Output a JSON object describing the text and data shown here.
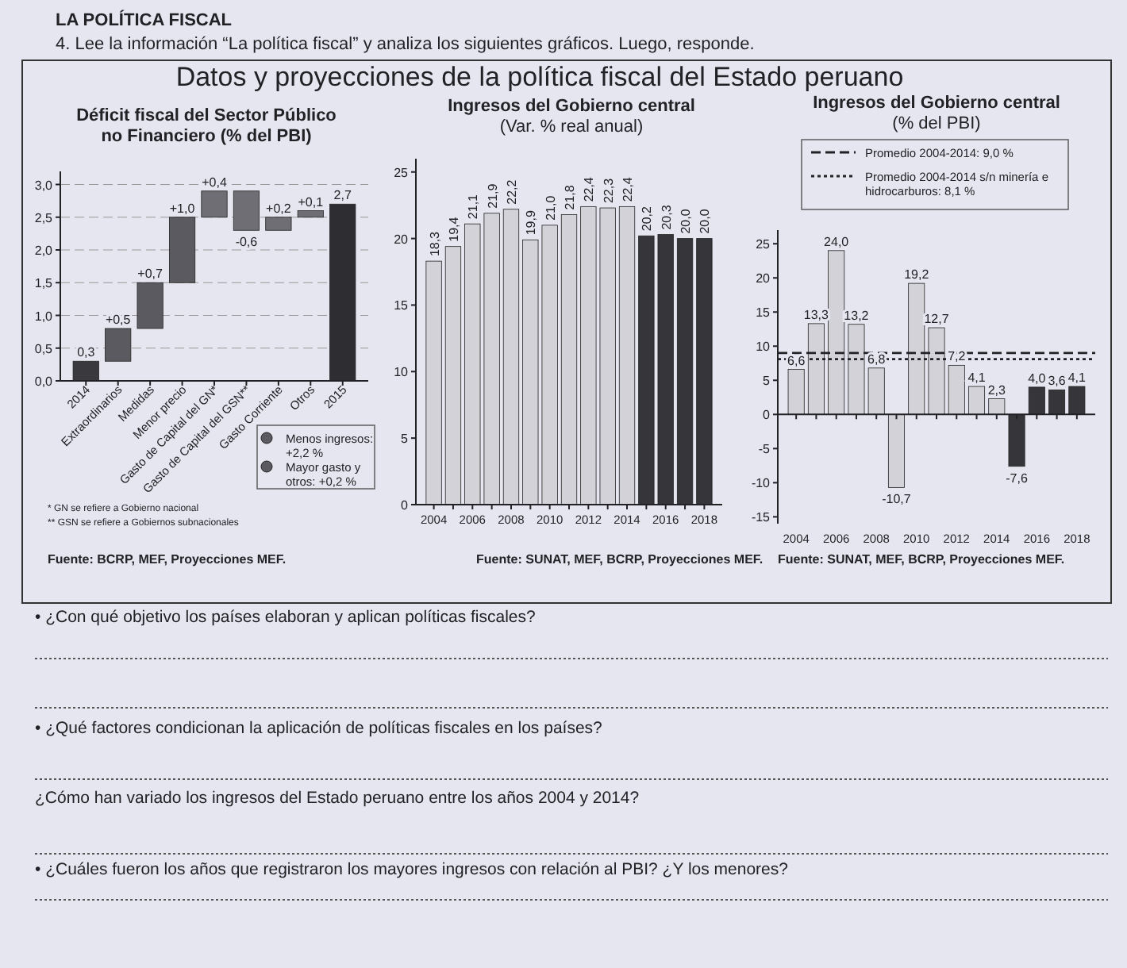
{
  "chart_data": [
    {
      "type": "other",
      "title": "LA POLÍTICA FISCAL",
      "subtitle": "4. Lee la información “La política fiscal” y analiza los siguientes gráficos. Luego, responde.",
      "annotations": [
        "Datos y proyecciones de la política fiscal del Estado peruano"
      ]
    },
    {
      "type": "bar",
      "title": "Déficit fiscal del Sector Público no Financiero (% del PBI)",
      "categories": [
        "2014",
        "Extraordinarios",
        "Medidas",
        "Menor precio",
        "Gasto de Capital del GN*",
        "Gasto de Capital del GSN**",
        "Gasto Corriente",
        "Otros",
        "2015"
      ],
      "values": [
        0.3,
        0.5,
        0.7,
        1.0,
        0.4,
        -0.6,
        0.2,
        0.1,
        2.7
      ],
      "base": [
        0,
        0.3,
        0.8,
        1.5,
        2.5,
        2.9,
        2.3,
        2.5,
        0
      ],
      "colors": [
        "#3a3a3e",
        "#5a5a60",
        "#5a5a60",
        "#5a5a60",
        "#6e6e74",
        "#6e6e74",
        "#6e6e74",
        "#6e6e74",
        "#2e2e32"
      ],
      "value_labels": [
        "0,3",
        "+0,5",
        "+0,7",
        "+1,0",
        "+0,4",
        "-0,6",
        "+0,2",
        "+0,1",
        "2,7"
      ],
      "ylim": [
        0,
        3.2
      ],
      "yticks": [
        {
          "value": 0,
          "label": "0,0"
        },
        {
          "value": 0.5,
          "label": "0,5"
        },
        {
          "value": 1,
          "label": "1,0"
        },
        {
          "value": 1.5,
          "label": "1,5"
        },
        {
          "value": 2,
          "label": "2,0"
        },
        {
          "value": 2.5,
          "label": "2,5"
        },
        {
          "value": 3,
          "label": "3,0"
        }
      ],
      "grid": "y",
      "line_style": "dashed",
      "annotations": [
        "Menos ingresos: +2,2 %",
        "Mayor gasto y otros: +0,2 %",
        "* GN se refiere a Gobierno nacional",
        "** GSN se refiere a Gobiernos subnacionales",
        "Fuente: BCRP, MEF, Proyecciones MEF."
      ]
    },
    {
      "type": "bar",
      "title": "Ingresos del Gobierno central",
      "subtitle": "(Var. % real anual)",
      "categories": [
        "2004",
        null,
        "2006",
        null,
        "2008",
        null,
        "2010",
        null,
        "2012",
        null,
        "2014",
        null,
        "2016",
        null,
        "2018"
      ],
      "values": [
        18.3,
        19.4,
        21.1,
        21.9,
        22.2,
        19.9,
        21.0,
        21.8,
        22.4,
        22.3,
        22.4,
        20.2,
        20.3,
        20.0,
        20.0
      ],
      "colors": [
        "#d2d2d8",
        "#d2d2d8",
        "#d2d2d8",
        "#d2d2d8",
        "#d2d2d8",
        "#d2d2d8",
        "#d2d2d8",
        "#d2d2d8",
        "#d2d2d8",
        "#d2d2d8",
        "#d2d2d8",
        "#35353a",
        "#35353a",
        "#35353a",
        "#35353a"
      ],
      "value_labels": [
        "18,3",
        "19,4",
        "21,1",
        "21,9",
        "22,2",
        "19,9",
        "21,0",
        "21,8",
        "22,4",
        "22,3",
        "22,4",
        "20,2",
        "20,3",
        "20,0",
        "20,0"
      ],
      "ylim": [
        0,
        26
      ],
      "yticks": [
        0,
        5,
        10,
        15,
        20,
        25
      ],
      "annotations": [
        "Fuente: SUNAT, MEF, BCRP, Proyecciones MEF."
      ]
    },
    {
      "type": "bar",
      "title": "Ingresos del Gobierno central",
      "subtitle": "(% del PBI)",
      "categories": [
        "2004",
        null,
        "2006",
        null,
        "2008",
        null,
        "2010",
        null,
        "2012",
        null,
        "2014",
        null,
        "2016",
        null,
        "2018"
      ],
      "values": [
        6.6,
        13.3,
        24.0,
        13.2,
        6.8,
        -10.7,
        19.2,
        12.7,
        7.2,
        4.1,
        2.3,
        -7.6,
        4.0,
        3.6,
        4.1
      ],
      "colors": [
        "#d2d2d8",
        "#d2d2d8",
        "#d2d2d8",
        "#d2d2d8",
        "#d2d2d8",
        "#d2d2d8",
        "#d2d2d8",
        "#d2d2d8",
        "#d2d2d8",
        "#d2d2d8",
        "#d2d2d8",
        "#35353a",
        "#35353a",
        "#35353a",
        "#35353a"
      ],
      "value_labels": [
        "6,6",
        "13,3",
        "24,0",
        "13,2",
        "6,8",
        "-10,7",
        "19,2",
        "12,7",
        "7,2",
        "4,1",
        "2,3",
        "-7,6",
        "4,0",
        "3,6",
        "4,1"
      ],
      "ylim": [
        -16,
        27
      ],
      "yticks": [
        -15,
        -10,
        -5,
        0,
        5,
        10,
        15,
        20,
        25
      ],
      "ref_lines": [
        {
          "axis": "y",
          "value": 9.0,
          "label": "Promedio 2004-2014: 9,0 %",
          "line_style": "dashed",
          "color": "#222226"
        },
        {
          "axis": "y",
          "value": 8.1,
          "label": "Promedio 2004-2014 s/n minería e hidrocarburos: 8,1 %",
          "line_style": "dotted",
          "color": "#222226"
        }
      ],
      "legend": "top",
      "annotations": [
        "Fuente: SUNAT, MEF, BCRP, Proyecciones MEF."
      ]
    },
    {
      "type": "other",
      "annotations": [
        "• ¿Con qué objetivo los países elaboran y aplican políticas fiscales?",
        "• ¿Qué factores condicionan la aplicación de políticas fiscales en los países?",
        "¿Cómo han variado los ingresos del Estado peruano entre los años 2004 y 2014?",
        "• ¿Cuáles fueron los años que registraron los mayores ingresos con relación al PBI? ¿Y los menores?"
      ]
    }
  ]
}
